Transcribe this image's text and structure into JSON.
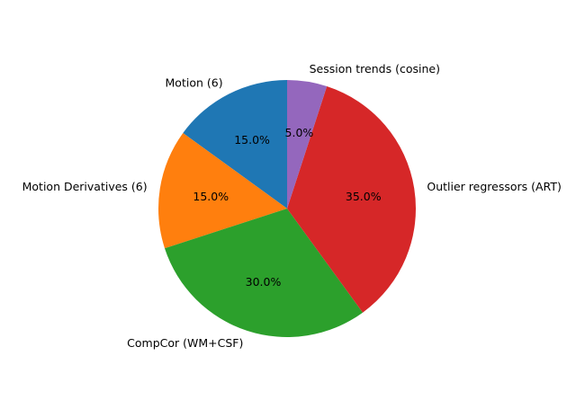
{
  "chart_data": {
    "type": "pie",
    "title": "",
    "slices": [
      {
        "label": "Motion (6)",
        "value": 15.0,
        "pct_label": "15.0%",
        "color": "#1f77b4"
      },
      {
        "label": "Motion Derivatives (6)",
        "value": 15.0,
        "pct_label": "15.0%",
        "color": "#ff7f0e"
      },
      {
        "label": "CompCor (WM+CSF)",
        "value": 30.0,
        "pct_label": "30.0%",
        "color": "#2ca02c"
      },
      {
        "label": "Outlier regressors (ART)",
        "value": 35.0,
        "pct_label": "35.0%",
        "color": "#d62728"
      },
      {
        "label": "Session trends (cosine)",
        "value": 5.0,
        "pct_label": "5.0%",
        "color": "#9467bd"
      }
    ],
    "start_angle_deg": 90,
    "direction": "counterclockwise",
    "legend": "none"
  }
}
